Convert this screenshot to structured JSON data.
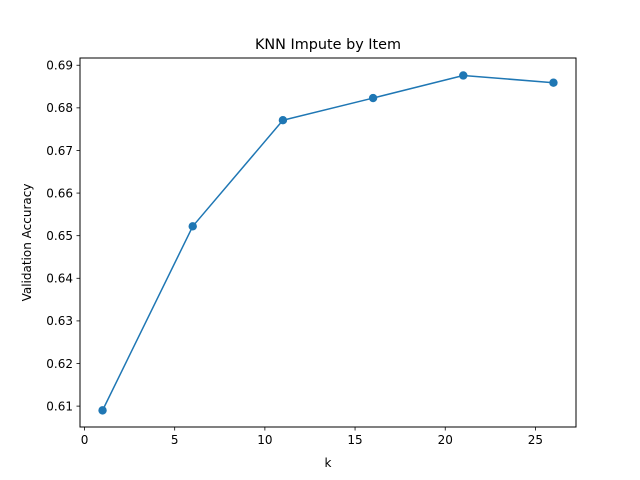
{
  "chart_data": {
    "type": "line",
    "title": "KNN Impute by Item",
    "xlabel": "k",
    "ylabel": "Validation Accuracy",
    "xlim": [
      -0.25,
      27.25
    ],
    "ylim": [
      0.6051,
      0.6917
    ],
    "xticks": [
      0,
      5,
      10,
      15,
      20,
      25
    ],
    "yticks": [
      0.61,
      0.62,
      0.63,
      0.64,
      0.65,
      0.66,
      0.67,
      0.68,
      0.69
    ],
    "xtick_labels": [
      "0",
      "5",
      "10",
      "15",
      "20",
      "25"
    ],
    "ytick_labels": [
      "0.61",
      "0.62",
      "0.63",
      "0.64",
      "0.65",
      "0.66",
      "0.67",
      "0.68",
      "0.69"
    ],
    "grid": false,
    "series": [
      {
        "color": "#1f77b4",
        "marker": "circle",
        "x": [
          1,
          6,
          11,
          16,
          21,
          26
        ],
        "y": [
          0.609,
          0.6522,
          0.6771,
          0.6823,
          0.6876,
          0.6859
        ]
      }
    ]
  }
}
